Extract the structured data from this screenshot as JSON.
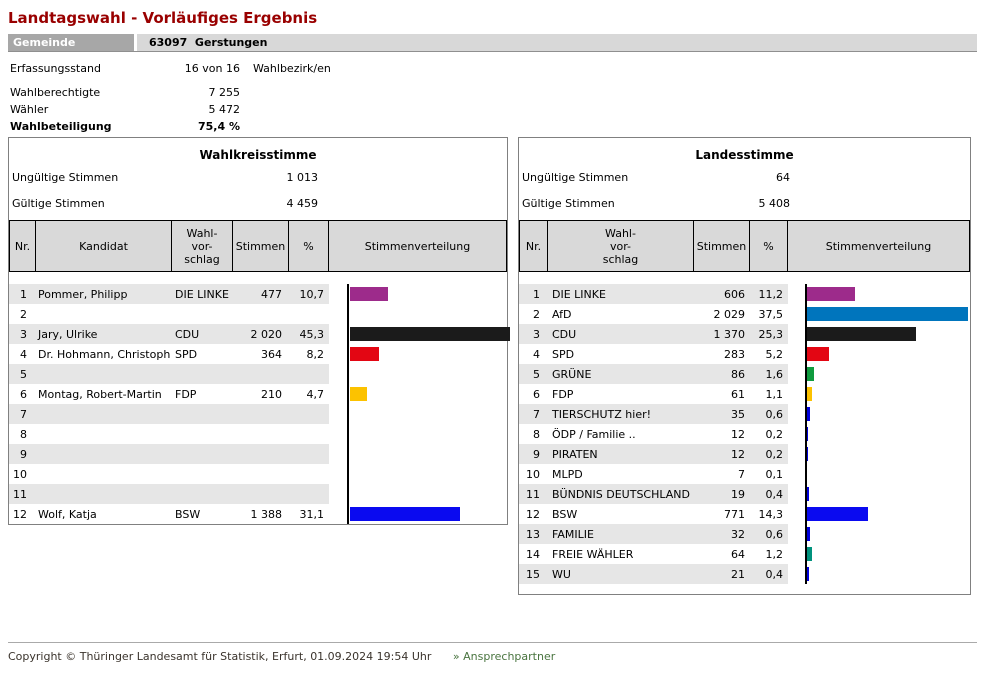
{
  "page": {
    "title": "Landtagswahl - Vorläufiges Ergebnis",
    "gemeinde_label": "Gemeinde",
    "gemeinde_value": "63097  Gerstungen",
    "info": {
      "erfassungsstand_label": "Erfassungsstand",
      "erfassungsstand_value": "16 von 16",
      "erfassungsstand_unit": "Wahlbezirk/en",
      "wahlberechtigte_label": "Wahlberechtigte",
      "wahlberechtigte_value": "7 255",
      "waehler_label": "Wähler",
      "waehler_value": "5 472",
      "wahlbeteiligung_label": "Wahlbeteiligung",
      "wahlbeteiligung_value": "75,4 %"
    },
    "footer": {
      "copyright": "Copyright © Thüringer Landesamt für Statistik, Erfurt, 01.09.2024 19:54 Uhr",
      "link_label": "» Ansprechpartner"
    }
  },
  "wahlkreis": {
    "title": "Wahlkreisstimme",
    "invalid_label": "Ungültige Stimmen",
    "invalid_value": "1 013",
    "valid_label": "Gültige Stimmen",
    "valid_value": "4 459",
    "columns": [
      "Nr.",
      "Kandidat",
      "Wahl-\nvor-\nschlag",
      "Stimmen",
      "%",
      "Stimmenverteilung"
    ],
    "rows": [
      {
        "nr": "1",
        "kandidat": "Pommer, Philipp",
        "partei": "DIE LINKE",
        "stimmen": "477",
        "pct_text": "10,7",
        "pct": 10.7,
        "color": "#9d2b8b"
      },
      {
        "nr": "2"
      },
      {
        "nr": "3",
        "kandidat": "Jary, Ulrike",
        "partei": "CDU",
        "stimmen": "2 020",
        "pct_text": "45,3",
        "pct": 45.3,
        "color": "#1b1b1b"
      },
      {
        "nr": "4",
        "kandidat": "Dr. Hohmann, Christoph",
        "partei": "SPD",
        "stimmen": "364",
        "pct_text": "8,2",
        "pct": 8.2,
        "color": "#e30613"
      },
      {
        "nr": "5"
      },
      {
        "nr": "6",
        "kandidat": "Montag, Robert-Martin",
        "partei": "FDP",
        "stimmen": "210",
        "pct_text": "4,7",
        "pct": 4.7,
        "color": "#fcc200"
      },
      {
        "nr": "7"
      },
      {
        "nr": "8"
      },
      {
        "nr": "9"
      },
      {
        "nr": "10"
      },
      {
        "nr": "11"
      },
      {
        "nr": "12",
        "kandidat": "Wolf, Katja",
        "partei": "BSW",
        "stimmen": "1 388",
        "pct_text": "31,1",
        "pct": 31.1,
        "color": "#0a0af0"
      }
    ]
  },
  "landes": {
    "title": "Landesstimme",
    "invalid_label": "Ungültige Stimmen",
    "invalid_value": "64",
    "valid_label": "Gültige Stimmen",
    "valid_value": "5 408",
    "columns": [
      "Nr.",
      "Wahl-\nvor-\nschlag",
      "Stimmen",
      "%",
      "Stimmenverteilung"
    ],
    "rows": [
      {
        "nr": "1",
        "partei": "DIE LINKE",
        "stimmen": "606",
        "pct_text": "11,2",
        "pct": 11.2,
        "color": "#9d2b8b"
      },
      {
        "nr": "2",
        "partei": "AfD",
        "stimmen": "2 029",
        "pct_text": "37,5",
        "pct": 37.5,
        "color": "#0075bd"
      },
      {
        "nr": "3",
        "partei": "CDU",
        "stimmen": "1 370",
        "pct_text": "25,3",
        "pct": 25.3,
        "color": "#1b1b1b"
      },
      {
        "nr": "4",
        "partei": "SPD",
        "stimmen": "283",
        "pct_text": "5,2",
        "pct": 5.2,
        "color": "#e30613"
      },
      {
        "nr": "5",
        "partei": "GRÜNE",
        "stimmen": "86",
        "pct_text": "1,6",
        "pct": 1.6,
        "color": "#0f9b3e"
      },
      {
        "nr": "6",
        "partei": "FDP",
        "stimmen": "61",
        "pct_text": "1,1",
        "pct": 1.1,
        "color": "#fcc200"
      },
      {
        "nr": "7",
        "partei": "TIERSCHUTZ hier!",
        "stimmen": "35",
        "pct_text": "0,6",
        "pct": 0.6,
        "color": "#0000dd"
      },
      {
        "nr": "8",
        "partei": "ÖDP / Familie ..",
        "stimmen": "12",
        "pct_text": "0,2",
        "pct": 0.2,
        "color": "#0000dd"
      },
      {
        "nr": "9",
        "partei": "PIRATEN",
        "stimmen": "12",
        "pct_text": "0,2",
        "pct": 0.2,
        "color": "#0000dd"
      },
      {
        "nr": "10",
        "partei": "MLPD",
        "stimmen": "7",
        "pct_text": "0,1",
        "pct": 0.1,
        "color": "#0000dd"
      },
      {
        "nr": "11",
        "partei": "BÜNDNIS DEUTSCHLAND",
        "stimmen": "19",
        "pct_text": "0,4",
        "pct": 0.4,
        "color": "#0000dd"
      },
      {
        "nr": "12",
        "partei": "BSW",
        "stimmen": "771",
        "pct_text": "14,3",
        "pct": 14.3,
        "color": "#0a0af0"
      },
      {
        "nr": "13",
        "partei": "FAMILIE",
        "stimmen": "32",
        "pct_text": "0,6",
        "pct": 0.6,
        "color": "#0000dd"
      },
      {
        "nr": "14",
        "partei": "FREIE WÄHLER",
        "stimmen": "64",
        "pct_text": "1,2",
        "pct": 1.2,
        "color": "#00927d"
      },
      {
        "nr": "15",
        "partei": "WU",
        "stimmen": "21",
        "pct_text": "0,4",
        "pct": 0.4,
        "color": "#0000dd"
      }
    ]
  },
  "chart_data": [
    {
      "type": "bar",
      "orientation": "horizontal",
      "title": "Wahlkreisstimme",
      "categories": [
        "DIE LINKE",
        "CDU",
        "SPD",
        "FDP",
        "BSW"
      ],
      "values": [
        10.7,
        45.3,
        8.2,
        4.7,
        31.1
      ],
      "votes": [
        477,
        2020,
        364,
        210,
        1388
      ],
      "colors": [
        "#9d2b8b",
        "#1b1b1b",
        "#e30613",
        "#fcc200",
        "#0a0af0"
      ],
      "xlabel": "Stimmenverteilung",
      "xlim": [
        0,
        45.3
      ],
      "invalid_votes": 1013,
      "valid_votes": 4459
    },
    {
      "type": "bar",
      "orientation": "horizontal",
      "title": "Landesstimme",
      "categories": [
        "DIE LINKE",
        "AfD",
        "CDU",
        "SPD",
        "GRÜNE",
        "FDP",
        "TIERSCHUTZ hier!",
        "ÖDP / Familie ..",
        "PIRATEN",
        "MLPD",
        "BÜNDNIS DEUTSCHLAND",
        "BSW",
        "FAMILIE",
        "FREIE WÄHLER",
        "WU"
      ],
      "values": [
        11.2,
        37.5,
        25.3,
        5.2,
        1.6,
        1.1,
        0.6,
        0.2,
        0.2,
        0.1,
        0.4,
        14.3,
        0.6,
        1.2,
        0.4
      ],
      "votes": [
        606,
        2029,
        1370,
        283,
        86,
        61,
        35,
        12,
        12,
        7,
        19,
        771,
        32,
        64,
        21
      ],
      "colors": [
        "#9d2b8b",
        "#0075bd",
        "#1b1b1b",
        "#e30613",
        "#0f9b3e",
        "#fcc200",
        "#0000dd",
        "#0000dd",
        "#0000dd",
        "#0000dd",
        "#0000dd",
        "#0a0af0",
        "#0000dd",
        "#00927d",
        "#0000dd"
      ],
      "xlabel": "Stimmenverteilung",
      "xlim": [
        0,
        37.5
      ],
      "invalid_votes": 64,
      "valid_votes": 5408
    }
  ]
}
